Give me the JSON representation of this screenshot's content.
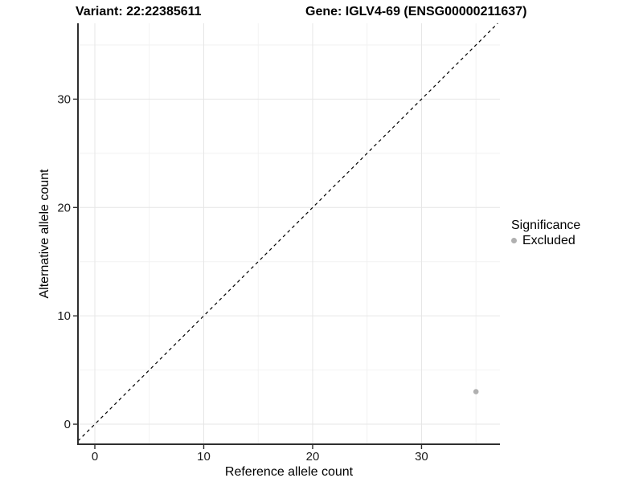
{
  "header": {
    "variant_title": "Variant: 22:22385611",
    "gene_title": "Gene: IGLV4-69 (ENSG00000211637)"
  },
  "colors": {
    "background": "#ffffff",
    "grid_major": "#e6e6e6",
    "grid_minor": "#f2f2f2",
    "axis_line": "#2e2e2e",
    "tick_mark": "#2e2e2e",
    "tick_label": "#1a1a1a",
    "title_text": "#000000",
    "point": "#b0b0b0",
    "reference_line": "#000000"
  },
  "chart_data": {
    "type": "scatter",
    "title_left": "Variant: 22:22385611",
    "title_right": "Gene: IGLV4-69 (ENSG00000211637)",
    "xlabel": "Reference allele count",
    "ylabel": "Alternative allele count",
    "xticks": [
      0,
      10,
      20,
      30
    ],
    "yticks": [
      0,
      10,
      20,
      30
    ],
    "xminor": [
      5,
      15,
      25,
      35
    ],
    "yminor": [
      5,
      15,
      25,
      35
    ],
    "xlim": [
      -1.55,
      37.2
    ],
    "ylim": [
      -1.85,
      37.0
    ],
    "grid": true,
    "legend_position": "right",
    "reference_line": {
      "type": "identity y=x",
      "style": "dashed",
      "color": "#000000"
    },
    "series": [
      {
        "name": "Excluded",
        "color": "#b0b0b0",
        "points": [
          {
            "x": 35,
            "y": 3
          }
        ]
      }
    ],
    "legend": {
      "title": "Significance",
      "items": [
        {
          "label": "Excluded",
          "color": "#b0b0b0",
          "marker": "circle-icon"
        }
      ]
    }
  }
}
